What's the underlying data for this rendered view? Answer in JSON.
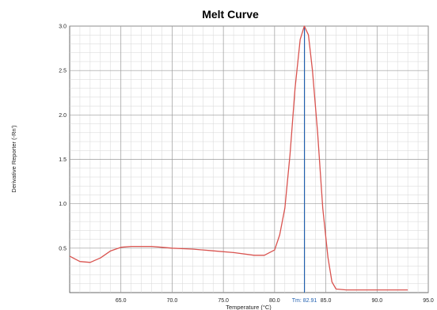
{
  "chart_data": {
    "type": "line",
    "title": "Melt Curve",
    "xlabel": "Temperature (°C)",
    "ylabel": "Derivative Reporter (-Rn')",
    "xlim": [
      60,
      95
    ],
    "ylim": [
      0,
      3.0
    ],
    "x_ticks": [
      {
        "value": 65,
        "label": "65.0"
      },
      {
        "value": 70,
        "label": "70.0"
      },
      {
        "value": 75,
        "label": "75.0"
      },
      {
        "value": 80,
        "label": "80.0"
      },
      {
        "value": 85,
        "label": "85.0"
      },
      {
        "value": 90,
        "label": "90.0"
      },
      {
        "value": 95,
        "label": "95.0"
      }
    ],
    "y_ticks": [
      {
        "value": 0.5,
        "label": "0.5"
      },
      {
        "value": 1.0,
        "label": "1.0"
      },
      {
        "value": 1.5,
        "label": "1.5"
      },
      {
        "value": 2.0,
        "label": "2.0"
      },
      {
        "value": 2.5,
        "label": "2.5"
      },
      {
        "value": 3.0,
        "label": "3.0"
      }
    ],
    "grid": true,
    "series": [
      {
        "color": "#d9534f",
        "x": [
          60,
          61,
          62,
          63,
          64,
          65,
          66,
          67,
          68,
          69,
          70,
          72,
          74,
          76,
          78,
          79,
          80,
          80.5,
          81,
          81.5,
          82,
          82.5,
          82.9,
          83.3,
          83.7,
          84.2,
          84.7,
          85.2,
          85.6,
          86,
          87,
          89,
          91,
          93
        ],
        "y": [
          0.41,
          0.35,
          0.34,
          0.39,
          0.47,
          0.51,
          0.52,
          0.52,
          0.52,
          0.51,
          0.5,
          0.49,
          0.47,
          0.45,
          0.42,
          0.42,
          0.48,
          0.65,
          0.95,
          1.55,
          2.3,
          2.85,
          3.0,
          2.9,
          2.5,
          1.8,
          0.95,
          0.4,
          0.12,
          0.04,
          0.03,
          0.03,
          0.03,
          0.03
        ]
      }
    ],
    "tm": {
      "value": 82.91,
      "label": "Tm: 82.91",
      "color": "#1f5fb0"
    }
  }
}
